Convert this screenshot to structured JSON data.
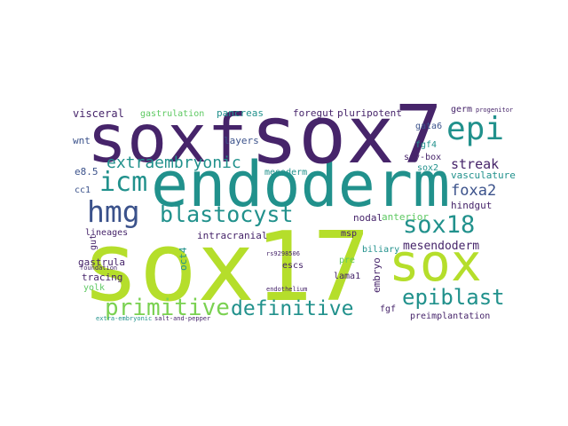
{
  "words": [
    "sox17",
    "endoderm",
    "sox7",
    "soxf",
    "sox",
    "epi",
    "icm",
    "hmg",
    "blastocyst",
    "sox18",
    "epiblast",
    "definitive",
    "primitive",
    "extraembryonic",
    "streak",
    "foxa2",
    "mesendoderm",
    "vasculature",
    "hindgut",
    "sox2",
    "sry-box",
    "fgf4",
    "gata6",
    "germ",
    "progenitor",
    "pancreas",
    "foregut",
    "pluripotent",
    "gastrulation",
    "visceral",
    "wnt",
    "e8.5",
    "cc1",
    "layers",
    "mesoderm",
    "nodal",
    "anterior",
    "intracranial",
    "msp",
    "biliary",
    "pre",
    "lineages",
    "gut",
    "gastrula",
    "tracing",
    "yolk",
    "oct4",
    "escs",
    "lama1",
    "embryo",
    "fgf",
    "preimplantation",
    "endothelium",
    "rs9298506",
    "foundation",
    "extra-embryonic",
    "salt-and-pepper"
  ]
}
